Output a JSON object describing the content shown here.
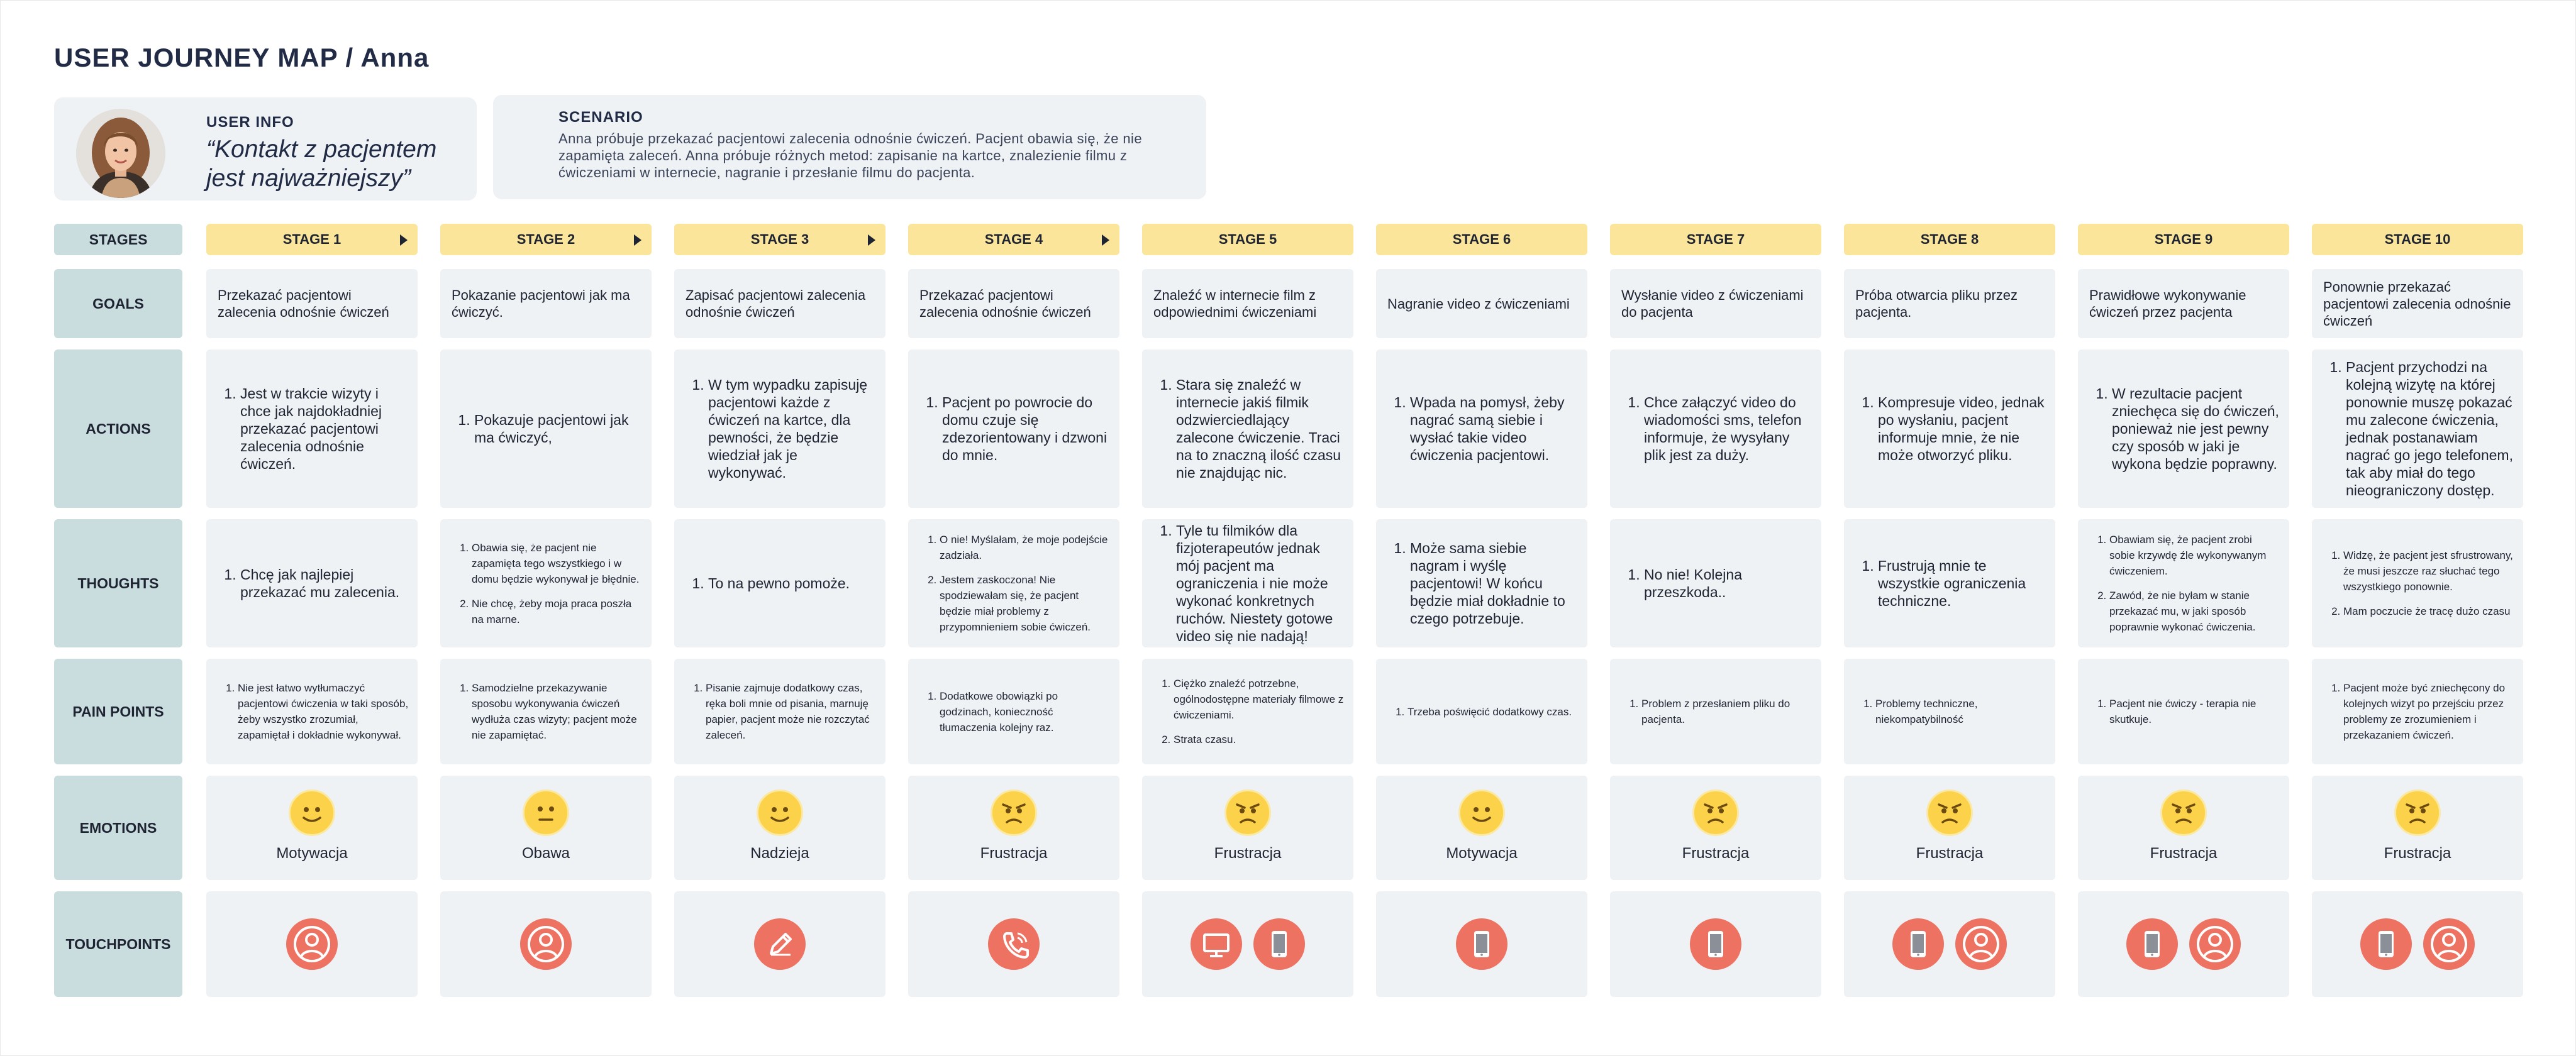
{
  "title": "USER JOURNEY MAP / Anna",
  "user_info": {
    "label": "USER INFO",
    "quote": "“Kontakt z pacjentem jest najważniejszy”"
  },
  "scenario": {
    "label": "SCENARIO",
    "text": "Anna próbuje przekazać pacjentowi zalecenia odnośnie ćwiczeń. Pacjent obawia się, że nie zapamięta zaleceń. Anna próbuje różnych metod: zapisanie na kartce, znalezienie filmu z ćwiczeniami w internecie, nagranie i przesłanie filmu do pacjenta."
  },
  "row_labels": {
    "stages": "STAGES",
    "goals": "GOALS",
    "actions": "ACTIONS",
    "thoughts": "THOUGHTS",
    "pain_points": "PAIN POINTS",
    "emotions": "EMOTIONS",
    "touchpoints": "TOUCHPOINTS"
  },
  "colors": {
    "stage_header": "#fbe59a",
    "row_label": "#c9dcde",
    "cell": "#eef2f5",
    "touchpoint": "#ee7261",
    "emoji": "#fbd24a"
  },
  "stages": [
    {
      "name": "STAGE 1",
      "goal": "Przekazać pacjentowi zalecenia odnośnie ćwiczeń",
      "actions": [
        "Jest w trakcie wizyty i chce jak najdokładniej przekazać pacjentowi zalecenia odnośnie ćwiczeń."
      ],
      "thoughts": [
        "Chcę jak najlepiej przekazać mu zalecenia."
      ],
      "thoughts_size": "big",
      "pain_points": [
        "Nie jest łatwo wytłumaczyć pacjentowi ćwiczenia w taki sposób, żeby wszystko zrozumiał, zapamiętał i dokładnie wykonywał."
      ],
      "emotion": "Motywacja",
      "emotion_face": "smile",
      "touchpoints": [
        "person-icon"
      ]
    },
    {
      "name": "STAGE 2",
      "goal": "Pokazanie pacjentowi jak ma ćwiczyć.",
      "actions": [
        "Pokazuje pacjentowi jak ma ćwiczyć,"
      ],
      "thoughts": [
        "Obawia się, że pacjent nie zapamięta tego wszystkiego i w domu będzie wykonywał je błędnie.",
        "Nie chcę, żeby moja praca poszła na marne."
      ],
      "thoughts_size": "small",
      "pain_points": [
        "Samodzielne przekazywanie sposobu wykonywania ćwiczeń wydłuża czas wizyty; pacjent może nie zapamiętać."
      ],
      "emotion": "Obawa",
      "emotion_face": "neutral",
      "touchpoints": [
        "person-icon"
      ]
    },
    {
      "name": "STAGE 3",
      "goal": "Zapisać pacjentowi zalecenia odnośnie ćwiczeń",
      "actions": [
        "W tym wypadku zapisuję pacjentowi każde z ćwiczeń na kartce, dla pewności, że będzie wiedział jak je wykonywać."
      ],
      "thoughts": [
        "To na pewno pomoże."
      ],
      "thoughts_size": "big",
      "pain_points": [
        "Pisanie zajmuje dodatkowy czas, ręka boli mnie od pisania, marnuję papier, pacjent może nie rozczytać zaleceń."
      ],
      "emotion": "Nadzieja",
      "emotion_face": "smile",
      "touchpoints": [
        "pencil-icon"
      ]
    },
    {
      "name": "STAGE 4",
      "goal": "Przekazać pacjentowi zalecenia odnośnie ćwiczeń",
      "actions": [
        "Pacjent po powrocie do domu czuje się zdezorientowany i dzwoni do mnie."
      ],
      "thoughts": [
        "O nie! Myślałam, że moje podejście zadziała.",
        "Jestem zaskoczona! Nie spodziewałam się, że pacjent będzie miał problemy z przypomnieniem sobie ćwiczeń."
      ],
      "thoughts_size": "small",
      "pain_points": [
        "Dodatkowe obowiązki po godzinach, konieczność tłumaczenia kolejny raz."
      ],
      "emotion": "Frustracja",
      "emotion_face": "angry",
      "touchpoints": [
        "phone-call-icon"
      ]
    },
    {
      "name": "STAGE 5",
      "goal": "Znaleźć w internecie film z odpowiednimi ćwiczeniami",
      "actions": [
        "Stara się znaleźć w internecie jakiś filmik odzwierciedlający zalecone ćwiczenie. Traci na to znaczną ilość czasu nie znajdując nic."
      ],
      "thoughts": [
        "Tyle tu filmików dla fizjoterapeutów jednak mój pacjent ma ograniczenia i nie może wykonać konkretnych ruchów. Niestety gotowe video się nie nadają!"
      ],
      "thoughts_size": "big",
      "pain_points": [
        "Ciężko znaleźć potrzebne, ogólnodostępne materiały filmowe z ćwiczeniami.",
        "Strata czasu."
      ],
      "emotion": "Frustracja",
      "emotion_face": "angry",
      "touchpoints": [
        "monitor-icon",
        "smartphone-icon"
      ]
    },
    {
      "name": "STAGE 6",
      "goal": "Nagranie video z ćwiczeniami",
      "actions": [
        "Wpada na pomysł, żeby nagrać samą siebie i wysłać takie video ćwiczenia pacjentowi."
      ],
      "thoughts": [
        "Może sama siebie nagram i wyślę pacjentowi! W końcu będzie miał dokładnie to czego potrzebuje."
      ],
      "thoughts_size": "big",
      "pain_points": [
        "Trzeba poświęcić dodatkowy czas."
      ],
      "emotion": "Motywacja",
      "emotion_face": "smile",
      "touchpoints": [
        "smartphone-icon"
      ]
    },
    {
      "name": "STAGE 7",
      "goal": "Wysłanie video z ćwiczeniami do pacjenta",
      "actions": [
        "Chce załączyć video do wiadomości sms, telefon informuje, że wysyłany plik jest za duży."
      ],
      "thoughts": [
        "No nie! Kolejna przeszkoda.."
      ],
      "thoughts_size": "big",
      "pain_points": [
        "Problem z przesłaniem pliku do pacjenta."
      ],
      "emotion": "Frustracja",
      "emotion_face": "angry",
      "touchpoints": [
        "smartphone-icon"
      ]
    },
    {
      "name": "STAGE 8",
      "goal": "Próba otwarcia pliku przez pacjenta.",
      "actions": [
        "Kompresuje video, jednak po wysłaniu, pacjent informuje mnie, że nie może otworzyć pliku."
      ],
      "thoughts": [
        "Frustrują mnie te wszystkie ograniczenia techniczne."
      ],
      "thoughts_size": "big",
      "pain_points": [
        "Problemy techniczne, niekompatybilność"
      ],
      "emotion": "Frustracja",
      "emotion_face": "angry",
      "touchpoints": [
        "smartphone-icon",
        "person-icon"
      ]
    },
    {
      "name": "STAGE 9",
      "goal": "Prawidłowe wykonywanie ćwiczeń przez pacjenta",
      "actions": [
        "W rezultacie pacjent zniechęca się do ćwiczeń, ponieważ nie jest pewny czy sposób w jaki je wykona będzie poprawny."
      ],
      "thoughts": [
        "Obawiam się, że pacjent zrobi sobie krzywdę źle wykonywanym ćwiczeniem.",
        "Zawód, że nie byłam w stanie przekazać mu, w jaki sposób poprawnie wykonać ćwiczenia."
      ],
      "thoughts_size": "small",
      "pain_points": [
        "Pacjent nie ćwiczy - terapia nie skutkuje."
      ],
      "emotion": "Frustracja",
      "emotion_face": "angry",
      "touchpoints": [
        "smartphone-icon",
        "person-icon"
      ]
    },
    {
      "name": "STAGE 10",
      "goal": "Ponownie przekazać pacjentowi zalecenia odnośnie ćwiczeń",
      "actions": [
        "Pacjent przychodzi na kolejną wizytę na której ponownie muszę pokazać mu zalecone ćwiczenia, jednak postanawiam nagrać go jego telefonem, tak aby miał do tego nieograniczony dostęp."
      ],
      "thoughts": [
        "Widzę, że pacjent jest sfrustrowany, że musi jeszcze raz słuchać tego wszystkiego ponownie.",
        "Mam poczucie że tracę dużo czasu"
      ],
      "thoughts_size": "small",
      "pain_points": [
        "Pacjent może być zniechęcony do kolejnych wizyt po przejściu przez problemy ze zrozumieniem i przekazaniem ćwiczeń."
      ],
      "emotion": "Frustracja",
      "emotion_face": "angry",
      "touchpoints": [
        "smartphone-icon",
        "person-icon"
      ]
    }
  ]
}
